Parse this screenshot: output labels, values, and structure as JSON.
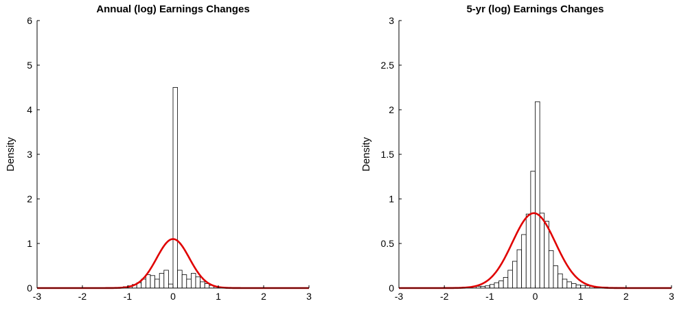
{
  "chart_data": [
    {
      "type": "bar",
      "title": "Annual (log) Earnings Changes",
      "xlabel": "",
      "ylabel": "Density",
      "xlim": [
        -3,
        3
      ],
      "ylim": [
        0,
        6
      ],
      "xticks": [
        "-3",
        "-2",
        "-1",
        "0",
        "1",
        "2",
        "3"
      ],
      "yticks": [
        "0",
        "1",
        "2",
        "3",
        "4",
        "5",
        "6"
      ],
      "grid": false,
      "histogram": {
        "bin_width": 0.1,
        "bin_centers": [
          -1.25,
          -1.15,
          -1.05,
          -0.95,
          -0.85,
          -0.75,
          -0.65,
          -0.55,
          -0.45,
          -0.35,
          -0.25,
          -0.15,
          -0.05,
          0.05,
          0.15,
          0.25,
          0.35,
          0.45,
          0.55,
          0.65,
          0.75,
          0.85,
          0.95,
          1.05,
          1.15,
          1.25
        ],
        "density": [
          0.01,
          0.015,
          0.03,
          0.05,
          0.08,
          0.12,
          0.2,
          0.3,
          0.28,
          0.2,
          0.33,
          0.4,
          0.09,
          4.5,
          0.4,
          0.3,
          0.2,
          0.33,
          0.25,
          0.14,
          0.1,
          0.06,
          0.03,
          0.015,
          0.01,
          0.005
        ],
        "edge_color": "#000000",
        "fill_color": "#ffffff"
      },
      "fit_curve": {
        "type": "normal",
        "mean": 0.0,
        "peak_density": 1.1,
        "color": "#e00000"
      }
    },
    {
      "type": "bar",
      "title": "5-yr (log) Earnings Changes",
      "xlabel": "",
      "ylabel": "Density",
      "xlim": [
        -3,
        3
      ],
      "ylim": [
        0,
        3
      ],
      "xticks": [
        "-3",
        "-2",
        "-1",
        "0",
        "1",
        "2",
        "3"
      ],
      "yticks": [
        "0",
        "0.5",
        "1",
        "1.5",
        "2",
        "2.5",
        "3"
      ],
      "grid": false,
      "histogram": {
        "bin_width": 0.1,
        "bin_centers": [
          -1.95,
          -1.85,
          -1.75,
          -1.65,
          -1.55,
          -1.45,
          -1.35,
          -1.25,
          -1.15,
          -1.05,
          -0.95,
          -0.85,
          -0.75,
          -0.65,
          -0.55,
          -0.45,
          -0.35,
          -0.25,
          -0.15,
          -0.05,
          0.05,
          0.15,
          0.25,
          0.35,
          0.45,
          0.55,
          0.65,
          0.75,
          0.85,
          0.95,
          1.05,
          1.15,
          1.25,
          1.35,
          1.45,
          1.55,
          1.65,
          1.75,
          1.85,
          1.95
        ],
        "density": [
          0.004,
          0.005,
          0.006,
          0.008,
          0.01,
          0.012,
          0.015,
          0.018,
          0.02,
          0.025,
          0.04,
          0.06,
          0.08,
          0.12,
          0.2,
          0.3,
          0.43,
          0.6,
          0.83,
          1.31,
          2.09,
          0.84,
          0.75,
          0.42,
          0.25,
          0.16,
          0.1,
          0.07,
          0.05,
          0.035,
          0.03,
          0.025,
          0.02,
          0.015,
          0.012,
          0.01,
          0.008,
          0.006,
          0.005,
          0.004
        ],
        "edge_color": "#000000",
        "fill_color": "#ffffff"
      },
      "fit_curve": {
        "type": "normal",
        "mean": -0.03,
        "peak_density": 0.84,
        "color": "#e00000"
      }
    }
  ]
}
